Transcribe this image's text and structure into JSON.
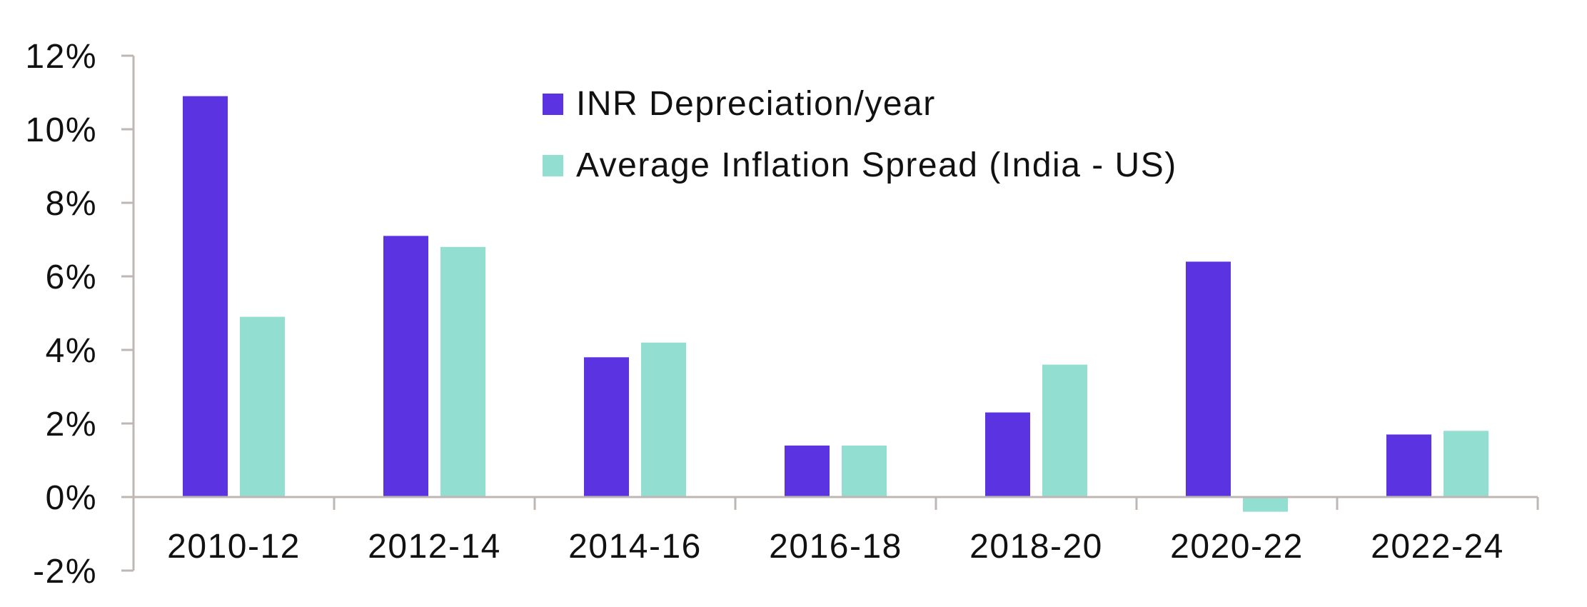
{
  "chart_data": {
    "type": "bar",
    "title": "",
    "xlabel": "",
    "ylabel": "",
    "categories": [
      "2010-12",
      "2012-14",
      "2014-16",
      "2016-18",
      "2018-20",
      "2020-22",
      "2022-24"
    ],
    "series": [
      {
        "name": "INR Depreciation/year",
        "color": "#5B33E1",
        "values": [
          10.9,
          7.1,
          3.8,
          1.4,
          2.3,
          6.4,
          1.7
        ]
      },
      {
        "name": "Average Inflation Spread (India - US)",
        "color": "#92DFD2",
        "values": [
          4.9,
          6.8,
          4.2,
          1.4,
          3.6,
          -0.4,
          1.8
        ]
      }
    ],
    "ylim": [
      -2,
      12
    ],
    "yticks": [
      12,
      10,
      8,
      6,
      4,
      2,
      0,
      -2
    ],
    "ytick_labels": [
      "12%",
      "10%",
      "8%",
      "6%",
      "4%",
      "2%",
      "0%",
      "-2%"
    ],
    "value_format": "percent",
    "grid": false,
    "legend_position": "top-center",
    "axis_color": "#BFB7B3"
  }
}
